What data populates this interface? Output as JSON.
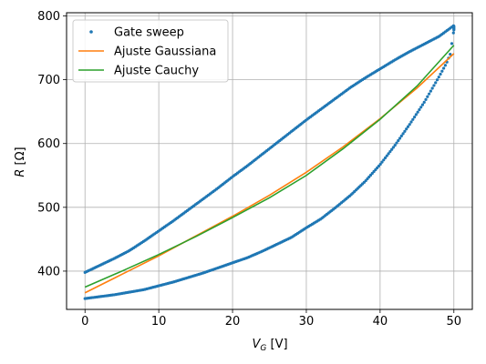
{
  "chart_data": {
    "type": "scatter",
    "xlabel": "V_G [V]",
    "ylabel": "R [Ω]",
    "xlim": [
      -2.5,
      52.5
    ],
    "ylim": [
      340,
      805
    ],
    "xticks": [
      0,
      10,
      20,
      30,
      40,
      50
    ],
    "yticks": [
      400,
      500,
      600,
      700,
      800
    ],
    "xtick_labels": [
      "0",
      "10",
      "20",
      "30",
      "40",
      "50"
    ],
    "ytick_labels": [
      "400",
      "500",
      "600",
      "700",
      "800"
    ],
    "grid": true,
    "legend_position": "top-left",
    "series": [
      {
        "name": "Gate sweep",
        "kind": "points",
        "color": "#1f77b4",
        "x_upper": [
          0,
          2,
          4,
          6,
          8,
          10,
          12,
          14,
          16,
          18,
          20,
          22,
          24,
          26,
          28,
          30,
          32,
          34,
          36,
          38,
          40,
          42,
          44,
          46,
          48,
          50
        ],
        "y_upper": [
          398,
          409,
          420,
          432,
          447,
          463,
          479,
          496,
          513,
          530,
          548,
          565,
          583,
          601,
          619,
          637,
          654,
          671,
          688,
          703,
          717,
          731,
          744,
          756,
          768,
          785
        ],
        "x_lower": [
          0,
          2,
          4,
          6,
          8,
          10,
          12,
          14,
          16,
          18,
          20,
          22,
          24,
          26,
          28,
          30,
          32,
          34,
          36,
          38,
          40,
          42,
          44,
          46,
          47,
          48,
          49,
          49.5,
          50
        ],
        "y_lower": [
          357,
          360,
          363,
          367,
          371,
          377,
          383,
          390,
          397,
          405,
          413,
          421,
          431,
          442,
          453,
          468,
          482,
          500,
          519,
          541,
          567,
          597,
          630,
          665,
          685,
          705,
          726,
          740,
          778
        ]
      },
      {
        "name": "Ajuste Gaussiana",
        "kind": "line",
        "color": "#ff7f0e",
        "x": [
          0,
          5,
          10,
          15,
          20,
          25,
          30,
          35,
          40,
          45,
          50
        ],
        "y": [
          366,
          395,
          424,
          455,
          486,
          519,
          555,
          595,
          639,
          687,
          741
        ]
      },
      {
        "name": "Ajuste Cauchy",
        "kind": "line",
        "color": "#2ca02c",
        "x": [
          0,
          5,
          10,
          15,
          20,
          25,
          30,
          35,
          40,
          45,
          50
        ],
        "y": [
          375,
          400,
          426,
          454,
          484,
          515,
          550,
          592,
          638,
          690,
          754
        ]
      }
    ]
  }
}
